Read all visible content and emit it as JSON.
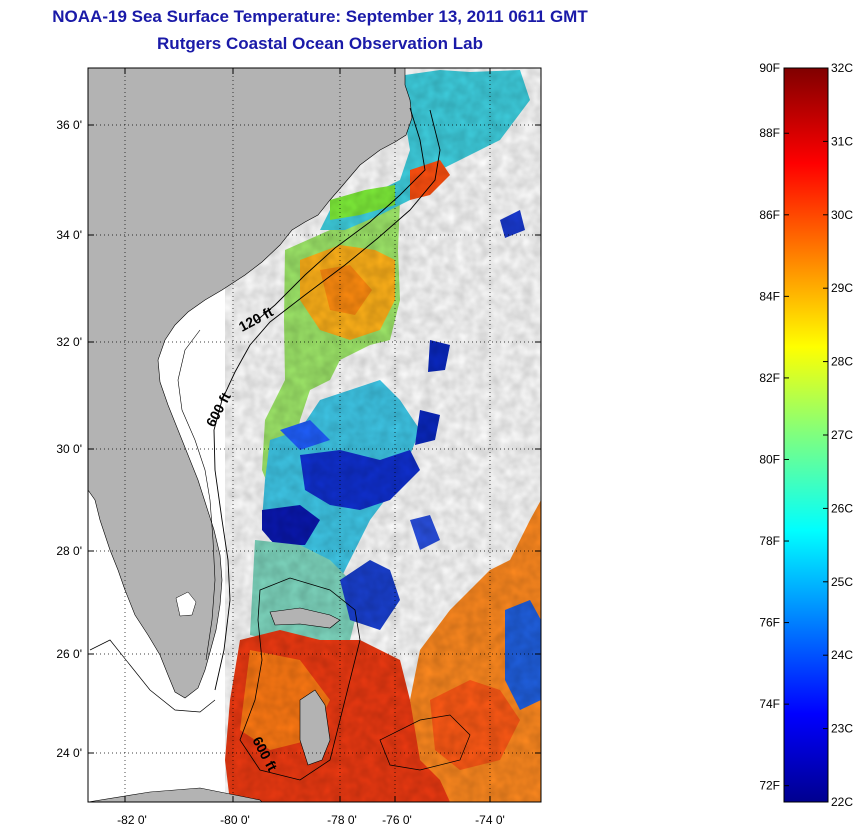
{
  "title_line1": "NOAA-19 Sea Surface Temperature:  September 13, 2011 0611 GMT",
  "title_line2": "Rutgers Coastal Ocean Observation Lab",
  "map": {
    "lat_ticks": [
      "36 0'",
      "34 0'",
      "32 0'",
      "30 0'",
      "28 0'",
      "26 0'",
      "24 0'"
    ],
    "lon_ticks": [
      "-82 0'",
      "-80 0'",
      "-78 0'",
      "-76 0'",
      "-74 0'"
    ],
    "contour_labels": [
      "120 ft",
      "600 ft",
      "600 ft"
    ],
    "colors": {
      "land": "#b3b3b3",
      "water_nodata": "#ffffff"
    }
  },
  "colorbar": {
    "fahrenheit": [
      "90F",
      "88F",
      "86F",
      "84F",
      "82F",
      "80F",
      "78F",
      "76F",
      "74F",
      "72F"
    ],
    "celsius": [
      "32C",
      "31C",
      "30C",
      "29C",
      "28C",
      "27C",
      "26C",
      "25C",
      "24C",
      "23C",
      "22C"
    ],
    "colormap": "jet"
  }
}
